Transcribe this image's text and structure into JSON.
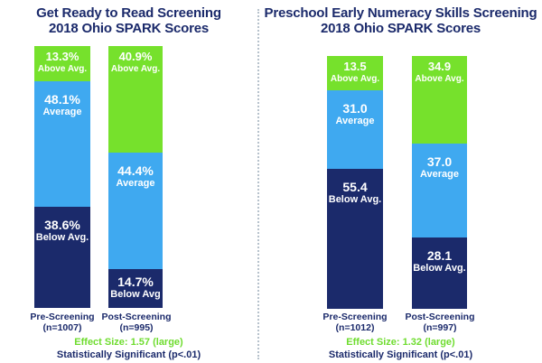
{
  "colors": {
    "above": "#76e12c",
    "average": "#3fa9f0",
    "below": "#1b2a6b",
    "title": "#1b2a6b",
    "effect": "#6edc2e"
  },
  "chart_data": [
    {
      "type": "bar",
      "stacked": true,
      "title_line1": "Get Ready to Read Screening",
      "title_line2": "2018 Ohio SPARK Scores",
      "categories": [
        {
          "line1": "Pre-Screening",
          "line2": "(n=1007)"
        },
        {
          "line1": "Post-Screening",
          "line2": "(n=995)"
        }
      ],
      "segments_order": [
        "below",
        "average",
        "above"
      ],
      "values": {
        "below": [
          38.6,
          14.7
        ],
        "average": [
          48.1,
          44.4
        ],
        "above": [
          13.3,
          40.9
        ]
      },
      "value_labels": {
        "below": [
          "38.6%",
          "14.7%"
        ],
        "average": [
          "48.1%",
          "44.4%"
        ],
        "above": [
          "13.3%",
          "40.9%"
        ]
      },
      "segment_labels": {
        "below": [
          "Below Avg.",
          "Below Avg"
        ],
        "average": [
          "Average",
          "Average"
        ],
        "above": [
          "Above Avg.",
          "Above Avg."
        ]
      },
      "ylim": [
        0,
        100
      ],
      "effect_size": "Effect Size: 1.57 (large)",
      "significance": "Statistically Significant (p<.01)"
    },
    {
      "type": "bar",
      "stacked": true,
      "title_line1": "Preschool Early Numeracy Skills Screening",
      "title_line2": "2018 Ohio SPARK Scores",
      "categories": [
        {
          "line1": "Pre-Screening",
          "line2": "(n=1012)"
        },
        {
          "line1": "Post-Screening",
          "line2": "(n=997)"
        }
      ],
      "segments_order": [
        "below",
        "average",
        "above"
      ],
      "values": {
        "below": [
          55.4,
          28.1
        ],
        "average": [
          31.0,
          37.0
        ],
        "above": [
          13.5,
          34.9
        ]
      },
      "value_labels": {
        "below": [
          "55.4",
          "28.1"
        ],
        "average": [
          "31.0",
          "37.0"
        ],
        "above": [
          "13.5",
          "34.9"
        ]
      },
      "segment_labels": {
        "below": [
          "Below Avg.",
          "Below Avg."
        ],
        "average": [
          "Average",
          "Average"
        ],
        "above": [
          "Above Avg.",
          "Above Avg."
        ]
      },
      "ylim": [
        0,
        100
      ],
      "effect_size": "Effect Size: 1.32 (large)",
      "significance": "Statistically Significant (p<.01)"
    }
  ]
}
